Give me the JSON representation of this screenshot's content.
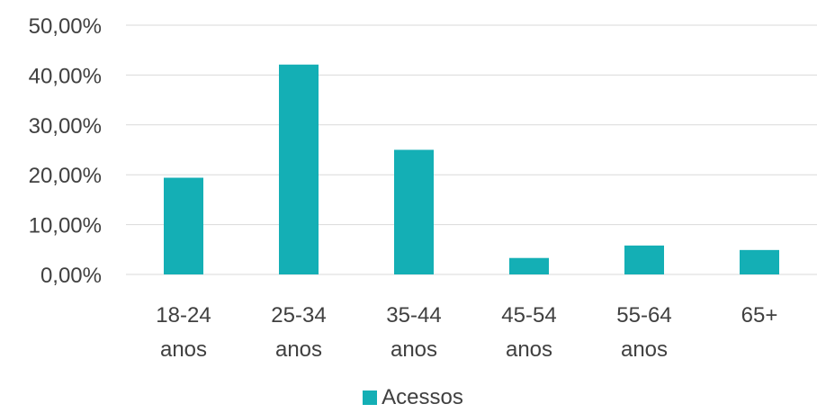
{
  "chart_data": {
    "type": "bar",
    "categories": [
      [
        "18-24",
        "anos"
      ],
      [
        "25-34",
        "anos"
      ],
      [
        "35-44",
        "anos"
      ],
      [
        "45-54",
        "anos"
      ],
      [
        "55-64",
        "anos"
      ],
      [
        "65+"
      ]
    ],
    "series": [
      {
        "name": "Acessos",
        "values": [
          19.4,
          42.1,
          25.0,
          3.3,
          5.8,
          4.9
        ],
        "color": "#14AFB5"
      }
    ],
    "y_ticks": [
      "0,00%",
      "10,00%",
      "20,00%",
      "30,00%",
      "40,00%",
      "50,00%"
    ],
    "ylim": [
      0,
      50
    ],
    "grid": true,
    "legend_position": "bottom"
  }
}
